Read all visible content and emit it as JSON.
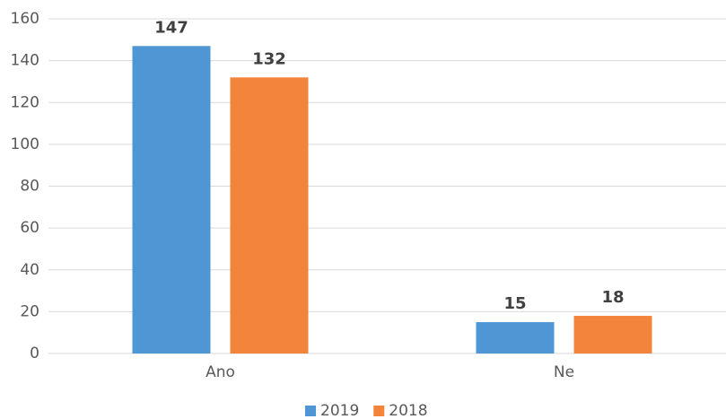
{
  "chart_data": {
    "type": "bar",
    "categories": [
      "Ano",
      "Ne"
    ],
    "series": [
      {
        "name": "2019",
        "color": "#4f96d4",
        "values": [
          147,
          15
        ]
      },
      {
        "name": "2018",
        "color": "#f3843b",
        "values": [
          132,
          18
        ]
      }
    ],
    "ylim": [
      0,
      160
    ],
    "yticks": [
      0,
      20,
      40,
      60,
      80,
      100,
      120,
      140,
      160
    ],
    "grid": true,
    "legend": "bottom"
  }
}
